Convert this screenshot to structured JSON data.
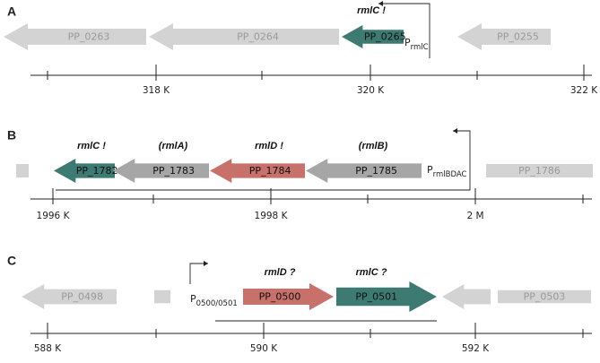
{
  "colors": {
    "light_gray": "#d3d3d3",
    "mid_gray": "#a6a6a6",
    "teal": "#3d7a72",
    "salmon": "#c8716b",
    "light_text": "#9a9a9a",
    "dark_text": "#111111"
  },
  "panels": [
    {
      "letter": "A",
      "genes": [
        {
          "label": "PP_0263",
          "dir": "left",
          "color": "light_gray",
          "text": "light"
        },
        {
          "label": "PP_0264",
          "dir": "left",
          "color": "light_gray",
          "text": "light"
        },
        {
          "label": "PP_0265",
          "dir": "left",
          "color": "teal",
          "text": "dark"
        },
        {
          "label": "PP_0255",
          "dir": "left",
          "color": "light_gray",
          "text": "light"
        }
      ],
      "gene_names": [
        "rmlC !"
      ],
      "promoter": {
        "main": "P",
        "sub": "rmlC"
      },
      "ticks": [
        "318 K",
        "320 K",
        "322 K"
      ]
    },
    {
      "letter": "B",
      "genes": [
        {
          "label": "",
          "dir": "box",
          "color": "light_gray",
          "text": "light"
        },
        {
          "label": "PP_1782",
          "dir": "left",
          "color": "teal",
          "text": "dark"
        },
        {
          "label": "PP_1783",
          "dir": "left",
          "color": "mid_gray",
          "text": "dark"
        },
        {
          "label": "PP_1784",
          "dir": "left",
          "color": "salmon",
          "text": "dark"
        },
        {
          "label": "PP_1785",
          "dir": "left",
          "color": "mid_gray",
          "text": "dark"
        },
        {
          "label": "PP_1786",
          "dir": "box",
          "color": "light_gray",
          "text": "light"
        }
      ],
      "gene_names": [
        "rmlC !",
        "(rmlA)",
        "rmlD !",
        "(rmlB)"
      ],
      "promoter": {
        "main": "P",
        "sub": "rmlBDAC"
      },
      "ticks": [
        "1996 K",
        "1998 K",
        "2 M"
      ]
    },
    {
      "letter": "C",
      "genes": [
        {
          "label": "PP_0498",
          "dir": "left",
          "color": "light_gray",
          "text": "light"
        },
        {
          "label": "",
          "dir": "box",
          "color": "light_gray",
          "text": "light"
        },
        {
          "label": "PP_0500",
          "dir": "right",
          "color": "salmon",
          "text": "dark"
        },
        {
          "label": "PP_0501",
          "dir": "right",
          "color": "teal",
          "text": "dark"
        },
        {
          "label": "",
          "dir": "left",
          "color": "light_gray",
          "text": "light"
        },
        {
          "label": "PP_0503",
          "dir": "box",
          "color": "light_gray",
          "text": "light"
        }
      ],
      "gene_names": [
        "rmlD ?",
        "rmlC ?"
      ],
      "promoter": {
        "main": "P",
        "sub": "0500/0501"
      },
      "ticks": [
        "588 K",
        "590 K",
        "592 K"
      ]
    }
  ]
}
